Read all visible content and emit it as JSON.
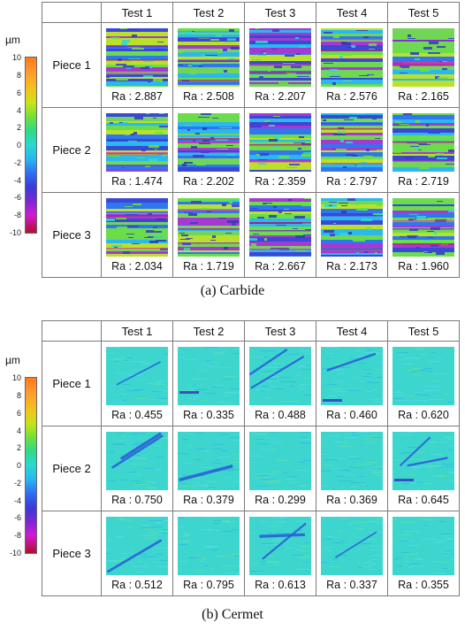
{
  "colorbar": {
    "unit": "µm",
    "ticks": [
      "10",
      "8",
      "6",
      "4",
      "2",
      "0",
      "-2",
      "-4",
      "-6",
      "-8",
      "-10"
    ]
  },
  "panels": [
    {
      "caption": "(a) Carbide",
      "corner": "",
      "columns": [
        "Test 1",
        "Test 2",
        "Test 3",
        "Test 4",
        "Test 5"
      ],
      "rows": [
        {
          "label": "Piece 1",
          "ra": [
            "Ra : 2.887",
            "Ra : 2.508",
            "Ra : 2.207",
            "Ra : 2.576",
            "Ra : 2.165"
          ]
        },
        {
          "label": "Piece 2",
          "ra": [
            "Ra : 1.474",
            "Ra : 2.202",
            "Ra : 2.359",
            "Ra : 2.797",
            "Ra : 2.719"
          ]
        },
        {
          "label": "Piece 3",
          "ra": [
            "Ra : 2.034",
            "Ra : 1.719",
            "Ra : 2.667",
            "Ra : 2.173",
            "Ra : 1.960"
          ]
        }
      ]
    },
    {
      "caption": "(b) Cermet",
      "corner": "",
      "columns": [
        "Test 1",
        "Test 2",
        "Test 3",
        "Test 4",
        "Test 5"
      ],
      "rows": [
        {
          "label": "Piece 1",
          "ra": [
            "Ra : 0.455",
            "Ra : 0.335",
            "Ra : 0.488",
            "Ra : 0.460",
            "Ra : 0.620"
          ]
        },
        {
          "label": "Piece 2",
          "ra": [
            "Ra : 0.750",
            "Ra : 0.379",
            "Ra : 0.299",
            "Ra : 0.369",
            "Ra : 0.645"
          ]
        },
        {
          "label": "Piece 3",
          "ra": [
            "Ra : 0.512",
            "Ra : 0.795",
            "Ra : 0.613",
            "Ra : 0.337",
            "Ra : 0.355"
          ]
        }
      ]
    }
  ]
}
